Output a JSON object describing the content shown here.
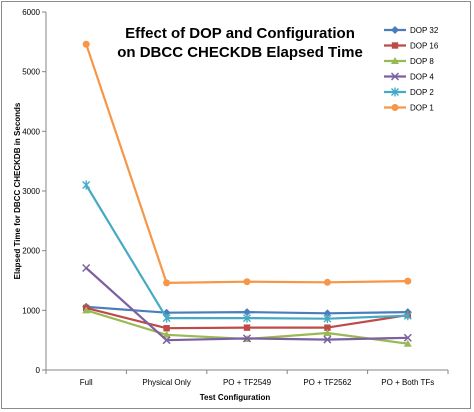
{
  "chart_data": {
    "type": "line",
    "title_lines": [
      "Effect of DOP and Configuration",
      "on DBCC CHECKDB Elapsed Time"
    ],
    "xlabel": "Test Configuration",
    "ylabel": "Elapsed Time for DBCC CHECKDB  in Seconds",
    "categories": [
      "Full",
      "Physical Only",
      "PO + TF2549",
      "PO + TF2562",
      "PO + Both TFs"
    ],
    "ylim": [
      0,
      6000
    ],
    "yticks": [
      "0",
      "1000",
      "2000",
      "3000",
      "4000",
      "5000",
      "6000"
    ],
    "grid": false,
    "legend_position": "top-right",
    "series": [
      {
        "name": "DOP 32",
        "values": [
          1060,
          960,
          970,
          950,
          970
        ],
        "color": "#4a7ebb",
        "marker": "diamond"
      },
      {
        "name": "DOP 16",
        "values": [
          1040,
          700,
          710,
          710,
          920
        ],
        "color": "#be4b48",
        "marker": "square"
      },
      {
        "name": "DOP 8",
        "values": [
          1000,
          590,
          520,
          620,
          440
        ],
        "color": "#98b954",
        "marker": "triangle"
      },
      {
        "name": "DOP 4",
        "values": [
          1710,
          500,
          530,
          510,
          540
        ],
        "color": "#7d60a0",
        "marker": "x"
      },
      {
        "name": "DOP 2",
        "values": [
          3100,
          870,
          870,
          860,
          910
        ],
        "color": "#46aac5",
        "marker": "star"
      },
      {
        "name": "DOP 1",
        "values": [
          5460,
          1460,
          1480,
          1470,
          1490
        ],
        "color": "#f79646",
        "marker": "circle"
      }
    ]
  }
}
